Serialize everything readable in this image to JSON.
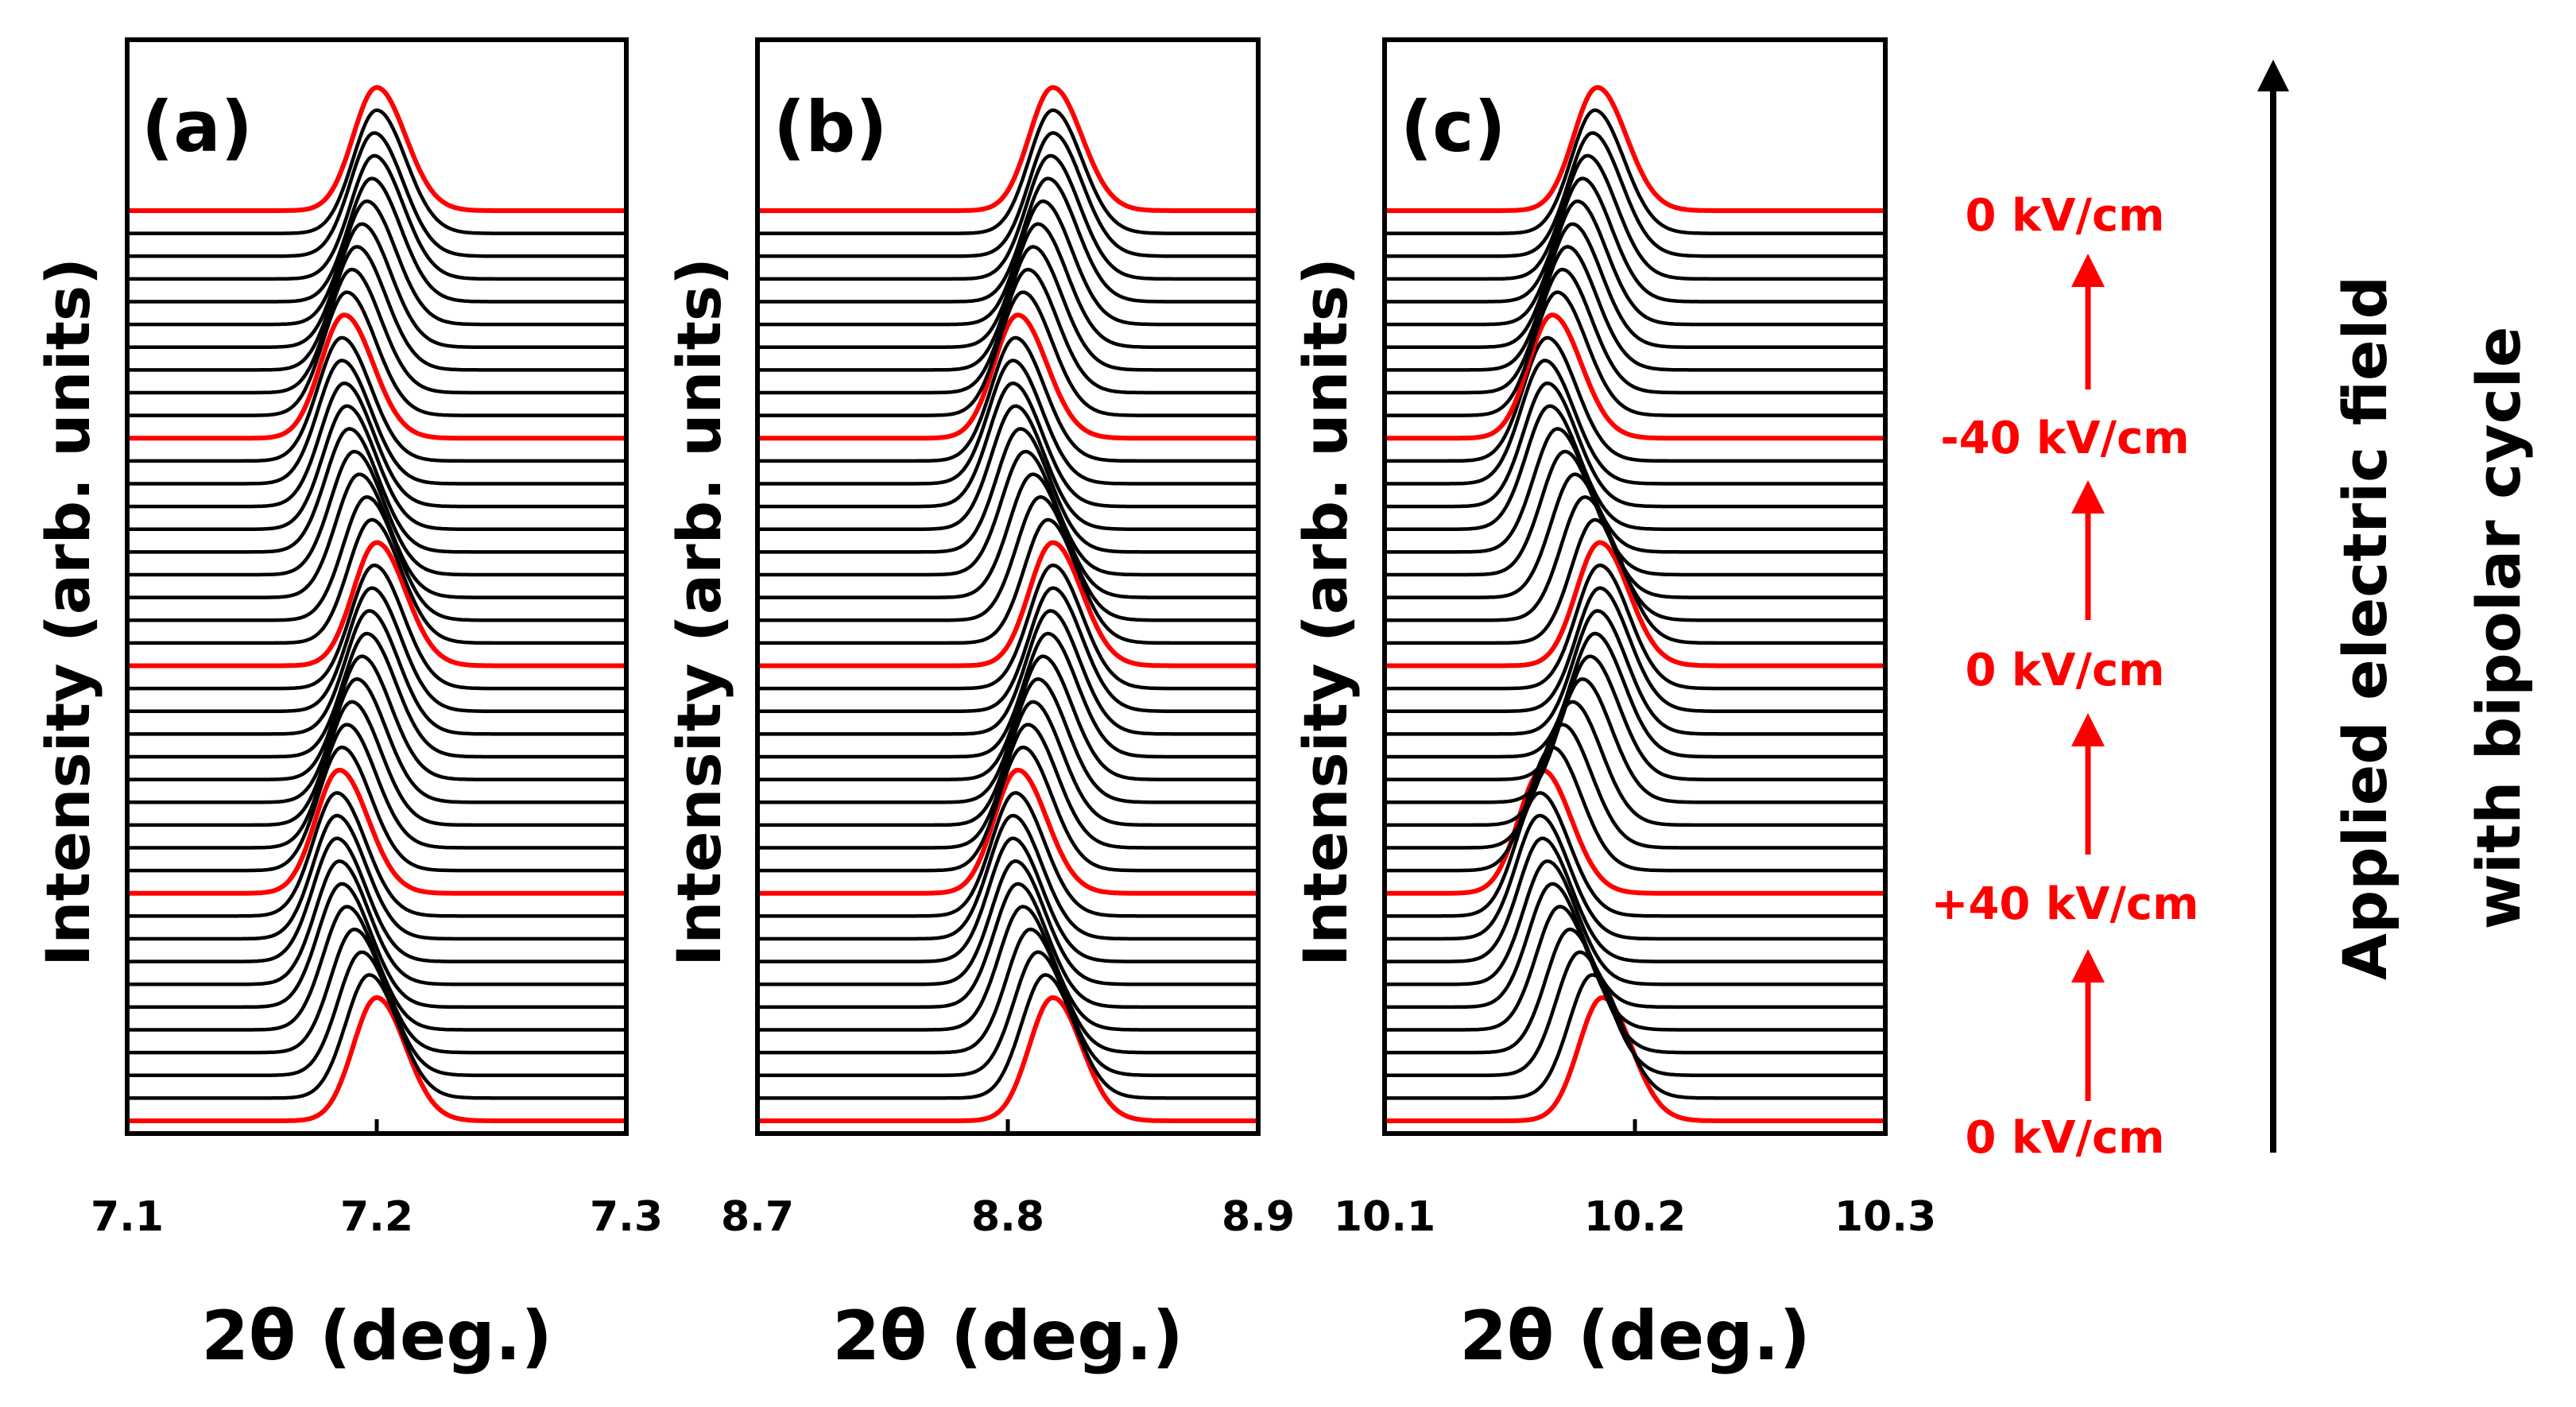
{
  "chart_data": [
    {
      "type": "line",
      "panel_label": "(a)",
      "xlabel": "2θ (deg.)",
      "ylabel": "Intensity (arb. units)",
      "xlim": [
        7.1,
        7.3
      ],
      "x_ticks": [
        "7.1",
        "7.2",
        "7.3"
      ],
      "peak_positions": [
        7.2,
        7.197,
        7.194,
        7.191,
        7.188,
        7.186,
        7.185,
        7.184,
        7.184,
        7.184,
        7.185,
        7.186,
        7.188,
        7.19,
        7.192,
        7.194,
        7.196,
        7.197,
        7.198,
        7.199,
        7.2,
        7.198,
        7.196,
        7.193,
        7.191,
        7.189,
        7.188,
        7.187,
        7.186,
        7.186,
        7.187,
        7.188,
        7.19,
        7.192,
        7.194,
        7.196,
        7.198,
        7.199,
        7.199,
        7.2,
        7.2
      ]
    },
    {
      "type": "line",
      "panel_label": "(b)",
      "xlabel": "2θ (deg.)",
      "ylabel": "Intensity (arb. units)",
      "xlim": [
        8.7,
        8.9
      ],
      "x_ticks": [
        "8.7",
        "8.8",
        "8.9"
      ],
      "peak_positions": [
        8.818,
        8.815,
        8.812,
        8.809,
        8.806,
        8.804,
        8.803,
        8.802,
        8.802,
        8.803,
        8.804,
        8.806,
        8.808,
        8.81,
        8.812,
        8.814,
        8.816,
        8.817,
        8.818,
        8.818,
        8.818,
        8.816,
        8.813,
        8.81,
        8.807,
        8.805,
        8.803,
        8.802,
        8.802,
        8.803,
        8.804,
        8.806,
        8.808,
        8.81,
        8.812,
        8.814,
        8.816,
        8.817,
        8.818,
        8.818,
        8.818
      ]
    },
    {
      "type": "line",
      "panel_label": "(c)",
      "xlabel": "2θ (deg.)",
      "ylabel": "Intensity (arb. units)",
      "xlim": [
        10.1,
        10.3
      ],
      "x_ticks": [
        "10.1",
        "10.2",
        "10.3"
      ],
      "peak_positions": [
        10.187,
        10.183,
        10.178,
        10.174,
        10.17,
        10.167,
        10.165,
        10.163,
        10.162,
        10.162,
        10.163,
        10.167,
        10.171,
        10.175,
        10.179,
        10.182,
        10.184,
        10.185,
        10.186,
        10.186,
        10.186,
        10.184,
        10.18,
        10.176,
        10.172,
        10.169,
        10.166,
        10.165,
        10.164,
        10.165,
        10.167,
        10.169,
        10.171,
        10.173,
        10.175,
        10.177,
        10.179,
        10.181,
        10.183,
        10.184,
        10.185
      ]
    }
  ],
  "field_labels": [
    "0 kV/cm",
    "-40 kV/cm",
    "0 kV/cm",
    "+40 kV/cm",
    "0 kV/cm"
  ],
  "axis_title_line1": "Applied electric field",
  "axis_title_line2": "with bipolar cycle",
  "colors": {
    "highlight": "#ff0000",
    "trace": "#000000"
  }
}
